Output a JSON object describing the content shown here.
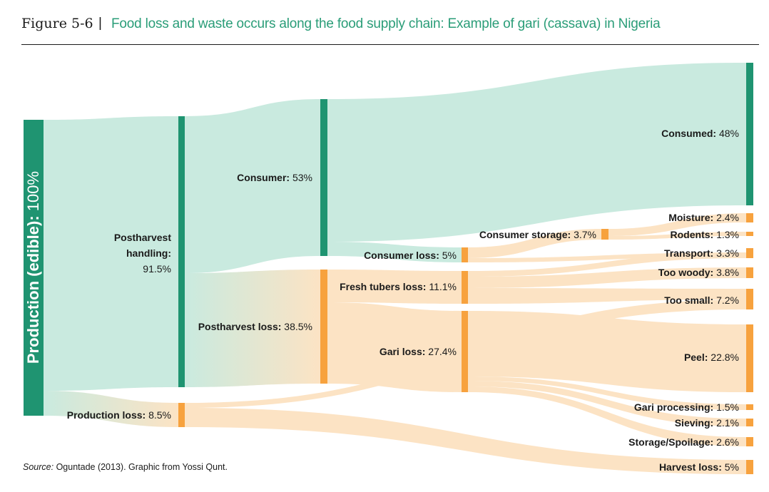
{
  "header": {
    "figure_label": "Figure 5-6",
    "separator": "|",
    "title": "Food loss and waste occurs along the food supply chain: Example of gari (cassava) in Nigeria"
  },
  "source": {
    "prefix": "Source:",
    "text": " Oguntade (2013). Graphic from Yossi Qunt."
  },
  "colors": {
    "green_node": "#1f9471",
    "green_flow": "#c9eadf",
    "orange_node": "#f7a23e",
    "orange_flow": "#fce3c4"
  },
  "nodes": {
    "production": {
      "name": "Production (edible):",
      "value": "100%"
    },
    "postharvest_handling": {
      "name_line1": "Postharvest",
      "name_line2": "handling:",
      "value": "91.5%"
    },
    "production_loss": {
      "name": "Production loss:",
      "value": "8.5%"
    },
    "consumer": {
      "name": "Consumer:",
      "value": "53%"
    },
    "postharvest_loss": {
      "name": "Postharvest loss:",
      "value": "38.5%"
    },
    "consumer_loss": {
      "name": "Consumer loss:",
      "value": "5%"
    },
    "fresh_tubers_loss": {
      "name": "Fresh tubers loss:",
      "value": "11.1%"
    },
    "gari_loss": {
      "name": "Gari loss:",
      "value": "27.4%"
    },
    "consumer_storage": {
      "name": "Consumer storage:",
      "value": "3.7%"
    },
    "consumed": {
      "name": "Consumed:",
      "value": "48%"
    },
    "moisture": {
      "name": "Moisture:",
      "value": "2.4%"
    },
    "rodents": {
      "name": "Rodents:",
      "value": "1.3%"
    },
    "transport": {
      "name": "Transport:",
      "value": "3.3%"
    },
    "too_woody": {
      "name": "Too woody:",
      "value": "3.8%"
    },
    "too_small": {
      "name": "Too small:",
      "value": "7.2%"
    },
    "peel": {
      "name": "Peel:",
      "value": "22.8%"
    },
    "gari_processing": {
      "name": "Gari processing:",
      "value": "1.5%"
    },
    "sieving": {
      "name": "Sieving:",
      "value": "2.1%"
    },
    "storage_spoilage": {
      "name": "Storage/Spoilage:",
      "value": "2.6%"
    },
    "harvest_loss": {
      "name": "Harvest loss:",
      "value": "5%"
    }
  }
}
